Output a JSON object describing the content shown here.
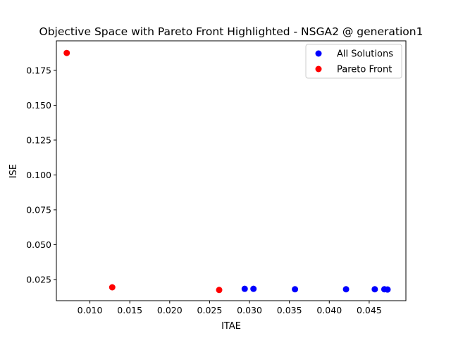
{
  "chart_data": {
    "type": "scatter",
    "title": "Objective Space with Pareto Front Highlighted - NSGA2 @ generation1",
    "xlabel": "ITAE",
    "ylabel": "ISE",
    "xlim": [
      0.0058,
      0.0496
    ],
    "ylim": [
      0.0098,
      0.1962
    ],
    "xticks": [
      0.01,
      0.015,
      0.02,
      0.025,
      0.03,
      0.035,
      0.04,
      0.045
    ],
    "xtick_labels": [
      "0.010",
      "0.015",
      "0.020",
      "0.025",
      "0.030",
      "0.035",
      "0.040",
      "0.045"
    ],
    "yticks": [
      0.025,
      0.05,
      0.075,
      0.1,
      0.125,
      0.15,
      0.175
    ],
    "ytick_labels": [
      "0.025",
      "0.050",
      "0.075",
      "0.100",
      "0.125",
      "0.150",
      "0.175"
    ],
    "grid": false,
    "legend_position": "top-right",
    "series": [
      {
        "name": "All Solutions",
        "color": "#0000ff",
        "points": [
          {
            "x": 0.0294,
            "y": 0.0183
          },
          {
            "x": 0.0305,
            "y": 0.0183
          },
          {
            "x": 0.0357,
            "y": 0.018
          },
          {
            "x": 0.0421,
            "y": 0.018
          },
          {
            "x": 0.0457,
            "y": 0.018
          },
          {
            "x": 0.0469,
            "y": 0.018
          },
          {
            "x": 0.0473,
            "y": 0.0178
          }
        ]
      },
      {
        "name": "Pareto Front",
        "color": "#ff0000",
        "points": [
          {
            "x": 0.0071,
            "y": 0.1875
          },
          {
            "x": 0.0128,
            "y": 0.0194
          },
          {
            "x": 0.0262,
            "y": 0.0175
          }
        ]
      }
    ]
  }
}
